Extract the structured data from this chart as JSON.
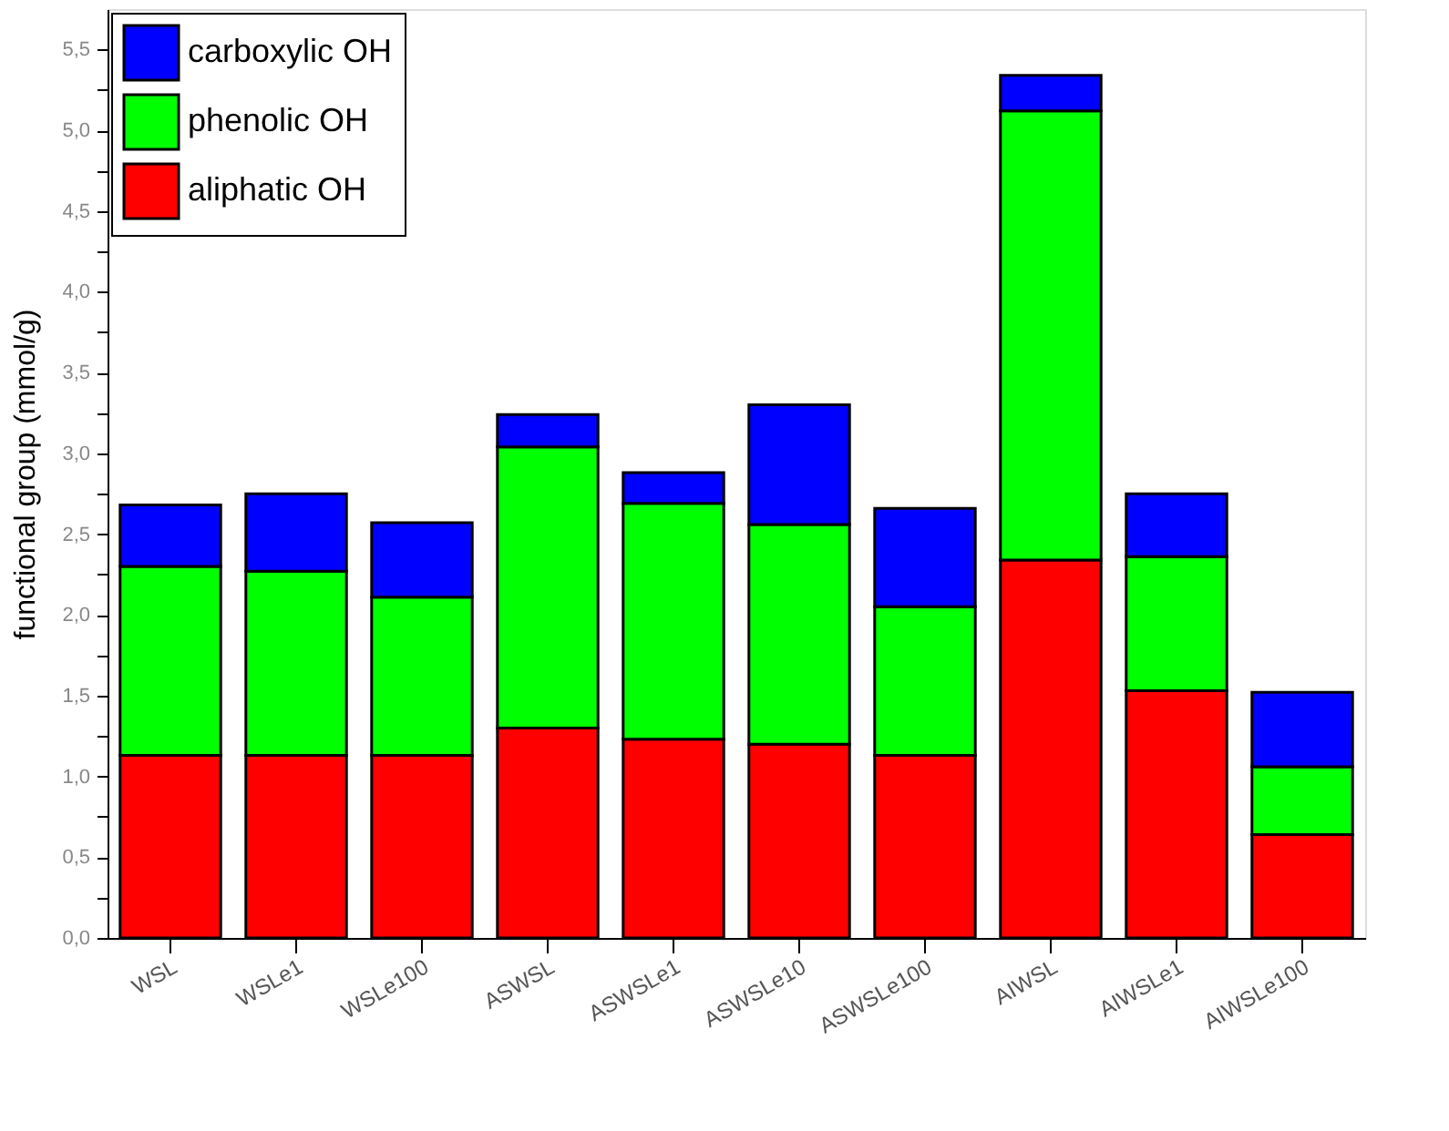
{
  "chart_data": {
    "type": "bar",
    "stacked": true,
    "ylabel": "functional group (mmol/g)",
    "categories": [
      "WSL",
      "WSLe1",
      "WSLe100",
      "ASWSL",
      "ASWSLe1",
      "ASWSLe10",
      "ASWSLe100",
      "AIWSL",
      "AIWSLe1",
      "AIWSLe100"
    ],
    "series": [
      {
        "name": "aliphatic OH",
        "color": "#ff0000",
        "values": [
          1.13,
          1.13,
          1.13,
          1.3,
          1.23,
          1.2,
          1.13,
          2.34,
          1.53,
          0.64
        ]
      },
      {
        "name": "phenolic OH",
        "color": "#00ff00",
        "values": [
          1.17,
          1.14,
          0.98,
          1.74,
          1.46,
          1.36,
          0.92,
          2.78,
          0.83,
          0.42
        ]
      },
      {
        "name": "carboxylic OH",
        "color": "#0000ff",
        "values": [
          0.38,
          0.48,
          0.46,
          0.2,
          0.19,
          0.74,
          0.61,
          0.22,
          0.39,
          0.46
        ]
      }
    ],
    "ylim": [
      0,
      5.75
    ],
    "yticks": [
      {
        "value": 0,
        "label": "0,0"
      },
      {
        "value": 0.25,
        "label": null
      },
      {
        "value": 0.5,
        "label": "0,5"
      },
      {
        "value": 0.75,
        "label": null
      },
      {
        "value": 1.0,
        "label": "1,0"
      },
      {
        "value": 1.25,
        "label": null
      },
      {
        "value": 1.5,
        "label": "1,5"
      },
      {
        "value": 1.75,
        "label": null
      },
      {
        "value": 2.0,
        "label": "2,0"
      },
      {
        "value": 2.25,
        "label": null
      },
      {
        "value": 2.5,
        "label": "2,5"
      },
      {
        "value": 2.75,
        "label": null
      },
      {
        "value": 3.0,
        "label": "3,0"
      },
      {
        "value": 3.25,
        "label": null
      },
      {
        "value": 3.5,
        "label": "3,5"
      },
      {
        "value": 3.75,
        "label": null
      },
      {
        "value": 4.0,
        "label": "4,0"
      },
      {
        "value": 4.25,
        "label": null
      },
      {
        "value": 4.5,
        "label": "4,5"
      },
      {
        "value": 4.75,
        "label": null
      },
      {
        "value": 5.0,
        "label": "5,0"
      },
      {
        "value": 5.25,
        "label": null
      },
      {
        "value": 5.5,
        "label": "5,5"
      }
    ],
    "legend": "top left",
    "grid": false
  }
}
